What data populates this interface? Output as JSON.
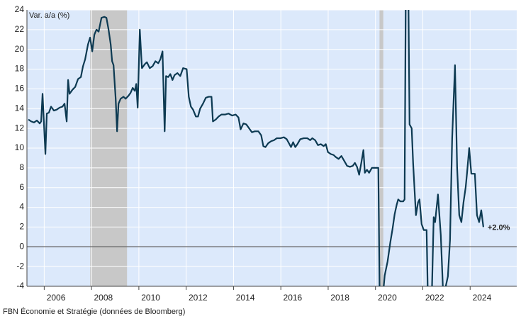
{
  "chart_data": {
    "type": "line",
    "y_axis_label": "Var. a/a (%)",
    "source": "FBN Économie et Stratégie (données de Bloomberg)",
    "annotations": [
      "+2.0%"
    ],
    "x": [
      2005.33,
      2005.45,
      2005.57,
      2005.69,
      2005.81,
      2005.87,
      2005.93,
      2006.05,
      2006.11,
      2006.2,
      2006.29,
      2006.41,
      2006.53,
      2006.65,
      2006.77,
      2006.86,
      2006.95,
      2007.01,
      2007.07,
      2007.19,
      2007.31,
      2007.43,
      2007.55,
      2007.64,
      2007.73,
      2007.85,
      2007.94,
      2008.03,
      2008.12,
      2008.21,
      2008.3,
      2008.42,
      2008.54,
      2008.63,
      2008.72,
      2008.81,
      2008.87,
      2008.93,
      2009.02,
      2009.08,
      2009.14,
      2009.23,
      2009.35,
      2009.44,
      2009.56,
      2009.65,
      2009.74,
      2009.83,
      2009.89,
      2009.95,
      2010.04,
      2010.13,
      2010.25,
      2010.34,
      2010.46,
      2010.58,
      2010.7,
      2010.82,
      2010.91,
      2011.0,
      2011.09,
      2011.15,
      2011.24,
      2011.33,
      2011.42,
      2011.51,
      2011.63,
      2011.75,
      2011.87,
      2012.02,
      2012.11,
      2012.2,
      2012.29,
      2012.41,
      2012.5,
      2012.59,
      2012.71,
      2012.83,
      2012.95,
      2013.07,
      2013.13,
      2013.25,
      2013.37,
      2013.49,
      2013.64,
      2013.79,
      2013.94,
      2014.09,
      2014.21,
      2014.3,
      2014.42,
      2014.54,
      2014.66,
      2014.78,
      2014.9,
      2015.05,
      2015.17,
      2015.26,
      2015.35,
      2015.47,
      2015.59,
      2015.71,
      2015.83,
      2015.98,
      2016.13,
      2016.25,
      2016.34,
      2016.43,
      2016.52,
      2016.61,
      2016.7,
      2016.82,
      2016.97,
      2017.12,
      2017.24,
      2017.33,
      2017.45,
      2017.57,
      2017.69,
      2017.81,
      2017.9,
      2017.99,
      2018.11,
      2018.23,
      2018.32,
      2018.44,
      2018.56,
      2018.68,
      2018.8,
      2018.92,
      2019.04,
      2019.13,
      2019.22,
      2019.31,
      2019.4,
      2019.49,
      2019.55,
      2019.64,
      2019.73,
      2019.85,
      2019.97,
      2020.12,
      2020.18,
      2020.33,
      2020.39,
      2020.51,
      2020.63,
      2020.72,
      2020.81,
      2020.9,
      2020.96,
      2021.05,
      2021.17,
      2021.23,
      2021.29,
      2021.38,
      2021.44,
      2021.53,
      2021.59,
      2021.68,
      2021.71,
      2021.8,
      2021.86,
      2021.95,
      2022.04,
      2022.16,
      2022.22,
      2022.37,
      2022.46,
      2022.52,
      2022.64,
      2022.76,
      2022.88,
      2022.97,
      2023.06,
      2023.15,
      2023.24,
      2023.36,
      2023.45,
      2023.54,
      2023.63,
      2023.72,
      2023.81,
      2023.87,
      2023.96,
      2024.05,
      2024.2,
      2024.29,
      2024.38,
      2024.47,
      2024.56
    ],
    "series": [
      {
        "color": "#0d3a52",
        "values": [
          12.9,
          12.7,
          12.6,
          12.8,
          12.5,
          12.7,
          15.5,
          9.4,
          13.5,
          13.6,
          14.2,
          13.8,
          13.9,
          14.1,
          14.2,
          14.5,
          12.7,
          16.9,
          15.5,
          15.9,
          16.2,
          17.0,
          17.2,
          18.3,
          19.0,
          20.5,
          21.2,
          19.8,
          21.5,
          22.0,
          21.8,
          23.2,
          23.3,
          23.2,
          22.0,
          20.5,
          18.8,
          18.4,
          15.0,
          11.7,
          14.5,
          15.0,
          15.2,
          15.0,
          15.3,
          15.6,
          16.1,
          15.8,
          16.5,
          14.1,
          22.0,
          18.1,
          18.5,
          18.7,
          18.1,
          18.3,
          18.8,
          18.6,
          19.0,
          19.8,
          11.7,
          17.3,
          17.2,
          17.5,
          16.9,
          17.4,
          17.6,
          17.3,
          18.1,
          18.0,
          15.2,
          14.2,
          13.9,
          13.2,
          13.2,
          14.0,
          14.5,
          15.1,
          15.2,
          15.2,
          12.7,
          12.9,
          13.2,
          13.4,
          13.4,
          13.5,
          13.3,
          13.4,
          13.1,
          11.9,
          12.5,
          12.4,
          12.0,
          11.6,
          11.7,
          11.7,
          11.3,
          10.2,
          10.1,
          10.5,
          10.7,
          10.8,
          11.0,
          11.0,
          11.1,
          10.9,
          10.5,
          10.1,
          10.6,
          10.1,
          10.4,
          10.9,
          11.0,
          11.0,
          10.8,
          11.0,
          10.8,
          10.3,
          10.4,
          10.2,
          10.4,
          9.6,
          9.4,
          9.3,
          9.1,
          8.9,
          9.2,
          8.7,
          8.2,
          8.1,
          8.2,
          8.5,
          8.1,
          7.3,
          8.5,
          9.8,
          7.5,
          7.8,
          7.5,
          8.0,
          8.0,
          8.0,
          -6,
          -4.5,
          -2.9,
          -1.5,
          0.5,
          1.8,
          3.3,
          4.3,
          4.8,
          4.6,
          4.6,
          4.8,
          30,
          28,
          12.4,
          12.0,
          8.5,
          4.5,
          3.2,
          4.5,
          4.8,
          2.3,
          1.7,
          1.7,
          -6,
          -6,
          3.0,
          2.5,
          5.3,
          1.2,
          -6,
          -4.0,
          -3.0,
          0.7,
          11,
          18.4,
          8,
          3.2,
          2.5,
          4.5,
          6.0,
          7.5,
          10.0,
          7.4,
          7.4,
          3.2,
          2.5,
          3.7,
          2.0
        ]
      }
    ],
    "shaded_periods": [
      [
        2007.94,
        2009.5
      ],
      [
        2020.17,
        2020.33
      ]
    ],
    "xlim": [
      2005.27,
      2025.97
    ],
    "xticks": [
      2006,
      2008,
      2010,
      2012,
      2014,
      2016,
      2018,
      2020,
      2022,
      2024
    ],
    "ylim": [
      -4,
      24
    ],
    "yticks": [
      -4,
      -2,
      0,
      2,
      4,
      6,
      8,
      10,
      12,
      14,
      16,
      18,
      20,
      22,
      24
    ],
    "grid": true
  }
}
